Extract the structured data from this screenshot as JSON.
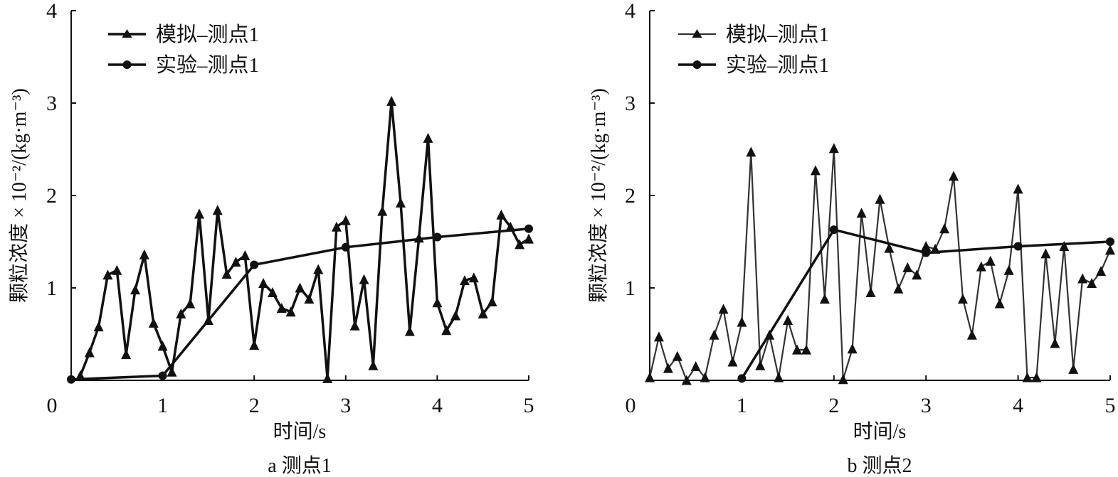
{
  "figure": {
    "panels": [
      {
        "id": "a",
        "caption": "a 测点1",
        "legend": [
          "模拟–测点1",
          "实验–测点1"
        ]
      },
      {
        "id": "b",
        "caption": "b 测点2",
        "legend": [
          "模拟–测点1",
          "实验–测点1"
        ]
      }
    ]
  },
  "chart_data": [
    {
      "type": "line",
      "title": "a 测点1",
      "xlabel": "时间/s",
      "ylabel": "颗粒浓度 × 10⁻²/(kg·m⁻³)",
      "xlim": [
        0,
        5
      ],
      "ylim": [
        0,
        4
      ],
      "xticks": [
        0,
        1,
        2,
        3,
        4,
        5
      ],
      "yticks": [
        1,
        2,
        3,
        4
      ],
      "xtick_labels": [
        "0",
        "1",
        "2",
        "3",
        "4",
        "5"
      ],
      "ytick_labels": [
        "1",
        "2",
        "3",
        "4"
      ],
      "grid": false,
      "legend_position": "top-left",
      "series": [
        {
          "name": "模拟–测点1",
          "marker": "triangle",
          "color": "#111111",
          "x": [
            0.1,
            0.2,
            0.3,
            0.4,
            0.5,
            0.6,
            0.7,
            0.8,
            0.9,
            1.0,
            1.1,
            1.2,
            1.3,
            1.4,
            1.5,
            1.6,
            1.7,
            1.8,
            1.9,
            2.0,
            2.1,
            2.2,
            2.3,
            2.4,
            2.5,
            2.6,
            2.7,
            2.8,
            2.9,
            3.0,
            3.1,
            3.2,
            3.3,
            3.4,
            3.5,
            3.6,
            3.7,
            3.8,
            3.9,
            4.0,
            4.1,
            4.2,
            4.3,
            4.4,
            4.5,
            4.6,
            4.7,
            4.8,
            4.9,
            5.0
          ],
          "y": [
            0.05,
            0.3,
            0.58,
            1.14,
            1.19,
            0.28,
            0.98,
            1.36,
            0.62,
            0.37,
            0.09,
            0.72,
            0.83,
            1.8,
            0.65,
            1.84,
            1.15,
            1.28,
            1.35,
            0.38,
            1.05,
            0.95,
            0.78,
            0.74,
            1.0,
            0.88,
            1.2,
            0.02,
            1.66,
            1.73,
            0.59,
            1.09,
            0.16,
            1.83,
            3.02,
            1.92,
            0.53,
            1.54,
            2.62,
            0.84,
            0.54,
            0.7,
            1.08,
            1.11,
            0.72,
            0.85,
            1.79,
            1.66,
            1.47,
            1.53
          ]
        },
        {
          "name": "实验–测点1",
          "marker": "circle",
          "color": "#111111",
          "x": [
            0,
            1,
            2,
            3,
            4,
            5
          ],
          "y": [
            0.01,
            0.05,
            1.25,
            1.44,
            1.55,
            1.64
          ]
        }
      ]
    },
    {
      "type": "line",
      "title": "b 测点2",
      "xlabel": "时间/s",
      "ylabel": "颗粒浓度 × 10⁻²/(kg·m⁻³)",
      "xlim": [
        0,
        5
      ],
      "ylim": [
        0,
        4
      ],
      "xticks": [
        0,
        1,
        2,
        3,
        4,
        5
      ],
      "yticks": [
        1,
        2,
        3,
        4
      ],
      "xtick_labels": [
        "0",
        "1",
        "2",
        "3",
        "4",
        "5"
      ],
      "ytick_labels": [
        "1",
        "2",
        "3",
        "4"
      ],
      "grid": false,
      "legend_position": "top-left",
      "series": [
        {
          "name": "模拟–测点1",
          "marker": "triangle",
          "color": "#333333",
          "x": [
            0.0,
            0.1,
            0.2,
            0.3,
            0.4,
            0.5,
            0.6,
            0.7,
            0.8,
            0.9,
            1.0,
            1.1,
            1.2,
            1.3,
            1.4,
            1.5,
            1.6,
            1.7,
            1.8,
            1.9,
            2.0,
            2.1,
            2.2,
            2.3,
            2.4,
            2.5,
            2.6,
            2.7,
            2.8,
            2.9,
            3.0,
            3.1,
            3.2,
            3.3,
            3.4,
            3.5,
            3.6,
            3.7,
            3.8,
            3.9,
            4.0,
            4.1,
            4.2,
            4.3,
            4.4,
            4.5,
            4.6,
            4.7,
            4.8,
            4.9,
            5.0
          ],
          "y": [
            0.03,
            0.47,
            0.13,
            0.26,
            0.0,
            0.15,
            0.03,
            0.49,
            0.77,
            0.2,
            0.63,
            2.47,
            0.16,
            0.49,
            0.03,
            0.65,
            0.33,
            0.33,
            2.27,
            0.88,
            2.51,
            0.01,
            0.34,
            1.81,
            0.95,
            1.96,
            1.43,
            0.99,
            1.22,
            1.14,
            1.45,
            1.42,
            1.64,
            2.21,
            0.88,
            0.49,
            1.23,
            1.29,
            0.83,
            1.19,
            2.07,
            0.03,
            0.03,
            1.37,
            0.4,
            1.45,
            0.12,
            1.1,
            1.05,
            1.18,
            1.41
          ]
        },
        {
          "name": "实验–测点1",
          "marker": "circle",
          "color": "#111111",
          "x": [
            1,
            2,
            3,
            4,
            5
          ],
          "y": [
            0.02,
            1.63,
            1.38,
            1.45,
            1.5
          ]
        }
      ]
    }
  ]
}
